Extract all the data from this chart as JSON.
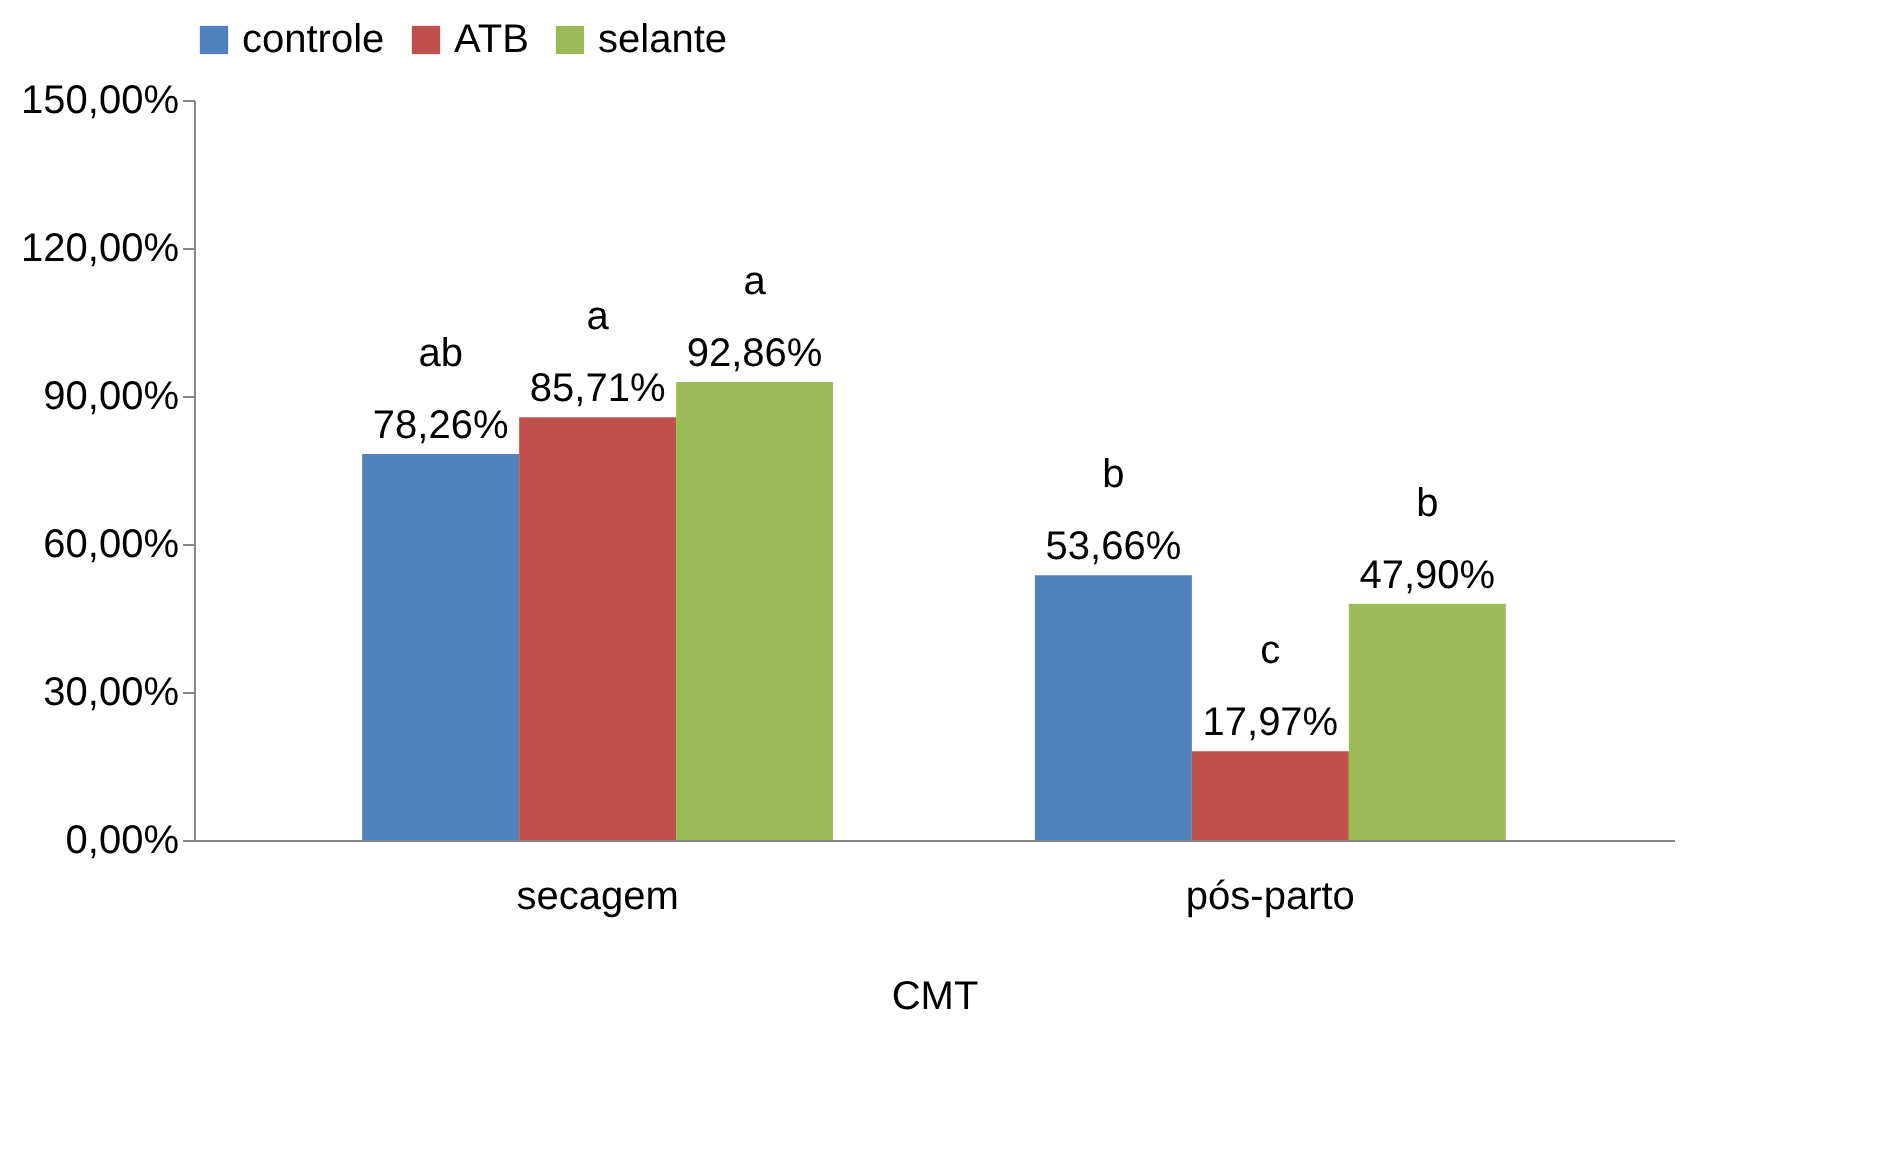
{
  "chart_data": {
    "type": "bar",
    "xlabel": "CMT",
    "categories": [
      "secagem",
      "pós-parto"
    ],
    "series": [
      {
        "name": "controle",
        "color": "#4f81bd",
        "values": [
          78.26,
          53.66
        ],
        "value_labels": [
          "78,26%",
          "53,66%"
        ]
      },
      {
        "name": "ATB",
        "color": "#c0504d",
        "values": [
          85.71,
          17.97
        ],
        "value_labels": [
          "85,71%",
          "17,97%"
        ]
      },
      {
        "name": "selante",
        "color": "#9bbb59",
        "values": [
          92.86,
          47.9
        ],
        "value_labels": [
          "92,86%",
          "47,90%"
        ]
      }
    ],
    "ylim": [
      0,
      150
    ],
    "yticks": [
      {
        "value": 0,
        "label": "0,00%"
      },
      {
        "value": 30,
        "label": "30,00%"
      },
      {
        "value": 60,
        "label": "60,00%"
      },
      {
        "value": 90,
        "label": "90,00%"
      },
      {
        "value": 120,
        "label": "120,00%"
      },
      {
        "value": 150,
        "label": "150,00%"
      }
    ],
    "annotations": [
      "ab",
      "a",
      "a",
      "b",
      "c",
      "b"
    ],
    "grid": false,
    "legend": "top"
  }
}
